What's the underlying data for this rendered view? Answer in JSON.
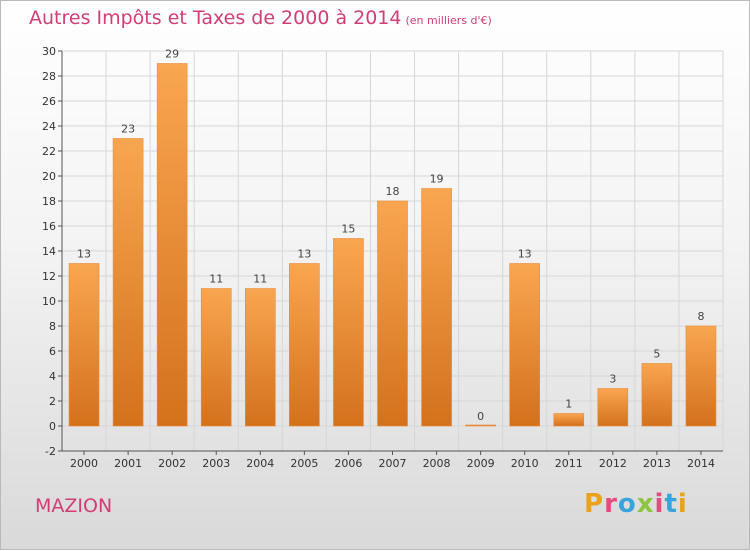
{
  "chart_data": {
    "type": "bar",
    "title": "Autres Impôts et Taxes de 2000 à 2014",
    "unit_note": "(en milliers d'€)",
    "categories": [
      "2000",
      "2001",
      "2002",
      "2003",
      "2004",
      "2005",
      "2006",
      "2007",
      "2008",
      "2009",
      "2010",
      "2011",
      "2012",
      "2013",
      "2014"
    ],
    "values": [
      13,
      23,
      29,
      11,
      11,
      13,
      15,
      18,
      19,
      0,
      13,
      1,
      3,
      5,
      8
    ],
    "ylim": [
      -2,
      30
    ],
    "yticks": [
      -2,
      0,
      2,
      4,
      6,
      8,
      10,
      12,
      14,
      16,
      18,
      20,
      22,
      24,
      26,
      28,
      30
    ],
    "xlabel": "",
    "ylabel": "",
    "grid": true,
    "bar_color_light": "#f9a650",
    "bar_color_dark": "#d4711c"
  },
  "footer": {
    "city": "MAZION",
    "logo_letters": [
      "P",
      "r",
      "o",
      "x",
      "i",
      "t",
      "i"
    ],
    "logo_colors": [
      "#e8a21c",
      "#e64b7e",
      "#38a4dc",
      "#8cc63e",
      "#e64b7e",
      "#38a4dc",
      "#e8a21c"
    ]
  }
}
